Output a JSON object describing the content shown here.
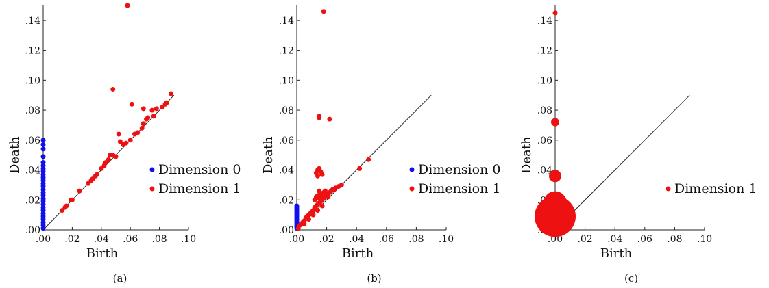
{
  "colors": {
    "dim0": "#1010ee",
    "dim1": "#ee1111",
    "axis": "#222222",
    "diagonal": "#222222"
  },
  "chart_data": [
    {
      "type": "scatter",
      "panel_label": "(a)",
      "xlabel": "Birth",
      "ylabel": "Death",
      "xlim": [
        0,
        0.1
      ],
      "ylim": [
        0,
        0.15
      ],
      "xticks": [
        ".00",
        ".02",
        ".04",
        ".06",
        ".08",
        ".10"
      ],
      "yticks": [
        ".00",
        ".02",
        ".04",
        ".06",
        ".08",
        ".10",
        ".12",
        ".14"
      ],
      "diagonal": [
        0,
        0.09
      ],
      "legend_position": "right",
      "series": [
        {
          "name": "Dimension 0",
          "color_key": "dim0",
          "points": [
            [
              0,
              0.001
            ],
            [
              0,
              0.003
            ],
            [
              0,
              0.005
            ],
            [
              0,
              0.007
            ],
            [
              0,
              0.009
            ],
            [
              0,
              0.011
            ],
            [
              0,
              0.013
            ],
            [
              0,
              0.015
            ],
            [
              0,
              0.017
            ],
            [
              0,
              0.019
            ],
            [
              0,
              0.021
            ],
            [
              0,
              0.023
            ],
            [
              0,
              0.025
            ],
            [
              0,
              0.027
            ],
            [
              0,
              0.029
            ],
            [
              0,
              0.031
            ],
            [
              0,
              0.033
            ],
            [
              0,
              0.035
            ],
            [
              0,
              0.037
            ],
            [
              0,
              0.039
            ],
            [
              0,
              0.041
            ],
            [
              0,
              0.043
            ],
            [
              0,
              0.045
            ],
            [
              0,
              0.049
            ],
            [
              0,
              0.054
            ],
            [
              0,
              0.057
            ],
            [
              0,
              0.06
            ]
          ]
        },
        {
          "name": "Dimension 1",
          "color_key": "dim1",
          "points": [
            [
              0.013,
              0.013
            ],
            [
              0.015,
              0.015
            ],
            [
              0.016,
              0.016
            ],
            [
              0.019,
              0.02
            ],
            [
              0.02,
              0.02
            ],
            [
              0.025,
              0.026
            ],
            [
              0.031,
              0.031
            ],
            [
              0.033,
              0.033
            ],
            [
              0.034,
              0.034
            ],
            [
              0.036,
              0.036
            ],
            [
              0.037,
              0.037
            ],
            [
              0.04,
              0.041
            ],
            [
              0.042,
              0.043
            ],
            [
              0.043,
              0.045
            ],
            [
              0.045,
              0.047
            ],
            [
              0.046,
              0.05
            ],
            [
              0.048,
              0.05
            ],
            [
              0.05,
              0.049
            ],
            [
              0.052,
              0.064
            ],
            [
              0.053,
              0.059
            ],
            [
              0.055,
              0.057
            ],
            [
              0.057,
              0.058
            ],
            [
              0.06,
              0.06
            ],
            [
              0.063,
              0.064
            ],
            [
              0.065,
              0.065
            ],
            [
              0.068,
              0.068
            ],
            [
              0.069,
              0.071
            ],
            [
              0.071,
              0.074
            ],
            [
              0.072,
              0.075
            ],
            [
              0.075,
              0.08
            ],
            [
              0.076,
              0.076
            ],
            [
              0.078,
              0.081
            ],
            [
              0.082,
              0.082
            ],
            [
              0.084,
              0.084
            ],
            [
              0.085,
              0.085
            ],
            [
              0.048,
              0.094
            ],
            [
              0.061,
              0.084
            ],
            [
              0.069,
              0.081
            ],
            [
              0.088,
              0.091
            ],
            [
              0.058,
              0.15
            ]
          ]
        }
      ]
    },
    {
      "type": "scatter",
      "panel_label": "(b)",
      "xlabel": "Birth",
      "ylabel": "Death",
      "xlim": [
        0,
        0.1
      ],
      "ylim": [
        0,
        0.15
      ],
      "xticks": [
        ".00",
        ".02",
        ".04",
        ".06",
        ".08",
        ".10"
      ],
      "yticks": [
        ".00",
        ".02",
        ".04",
        ".06",
        ".08",
        ".10",
        ".12",
        ".14"
      ],
      "diagonal": [
        0,
        0.09
      ],
      "legend_position": "right",
      "series": [
        {
          "name": "Dimension 0",
          "color_key": "dim0",
          "points": [
            [
              0,
              0.001
            ],
            [
              0,
              0.002
            ],
            [
              0,
              0.003
            ],
            [
              0,
              0.004
            ],
            [
              0,
              0.005
            ],
            [
              0,
              0.006
            ],
            [
              0,
              0.007
            ],
            [
              0,
              0.008
            ],
            [
              0,
              0.009
            ],
            [
              0,
              0.01
            ],
            [
              0,
              0.011
            ],
            [
              0,
              0.012
            ],
            [
              0,
              0.013
            ],
            [
              0,
              0.014
            ],
            [
              0,
              0.015
            ],
            [
              0,
              0.016
            ]
          ]
        },
        {
          "name": "Dimension 1",
          "color_key": "dim1",
          "points": [
            [
              0.001,
              0.001
            ],
            [
              0.002,
              0.003
            ],
            [
              0.003,
              0.004
            ],
            [
              0.004,
              0.005
            ],
            [
              0.005,
              0.006
            ],
            [
              0.006,
              0.008
            ],
            [
              0.007,
              0.009
            ],
            [
              0.008,
              0.01
            ],
            [
              0.009,
              0.011
            ],
            [
              0.01,
              0.012
            ],
            [
              0.011,
              0.013
            ],
            [
              0.012,
              0.015
            ],
            [
              0.013,
              0.016
            ],
            [
              0.014,
              0.017
            ],
            [
              0.015,
              0.018
            ],
            [
              0.016,
              0.019
            ],
            [
              0.017,
              0.02
            ],
            [
              0.018,
              0.021
            ],
            [
              0.019,
              0.022
            ],
            [
              0.02,
              0.023
            ],
            [
              0.021,
              0.024
            ],
            [
              0.022,
              0.025
            ],
            [
              0.023,
              0.026
            ],
            [
              0.024,
              0.027
            ],
            [
              0.025,
              0.027
            ],
            [
              0.026,
              0.028
            ],
            [
              0.028,
              0.029
            ],
            [
              0.03,
              0.03
            ],
            [
              0.005,
              0.004
            ],
            [
              0.008,
              0.007
            ],
            [
              0.011,
              0.01
            ],
            [
              0.014,
              0.013
            ],
            [
              0.017,
              0.016
            ],
            [
              0.012,
              0.02
            ],
            [
              0.013,
              0.022
            ],
            [
              0.014,
              0.023
            ],
            [
              0.015,
              0.021
            ],
            [
              0.016,
              0.024
            ],
            [
              0.017,
              0.022
            ],
            [
              0.018,
              0.025
            ],
            [
              0.019,
              0.026
            ],
            [
              0.02,
              0.024
            ],
            [
              0.021,
              0.022
            ],
            [
              0.015,
              0.026
            ],
            [
              0.013,
              0.038
            ],
            [
              0.014,
              0.04
            ],
            [
              0.015,
              0.041
            ],
            [
              0.016,
              0.039
            ],
            [
              0.017,
              0.037
            ],
            [
              0.014,
              0.036
            ],
            [
              0.015,
              0.075
            ],
            [
              0.015,
              0.076
            ],
            [
              0.022,
              0.074
            ],
            [
              0.018,
              0.146
            ],
            [
              0.042,
              0.041
            ],
            [
              0.048,
              0.047
            ]
          ]
        }
      ]
    },
    {
      "type": "scatter",
      "panel_label": "(c)",
      "xlabel": "Birth",
      "ylabel": "Death",
      "xlim": [
        0,
        0.1
      ],
      "ylim": [
        0,
        0.15
      ],
      "xticks": [
        ".00",
        ".02",
        ".04",
        ".06",
        ".08",
        ".10"
      ],
      "yticks": [
        ".00",
        ".02",
        ".04",
        ".06",
        ".08",
        ".10",
        ".12",
        ".14"
      ],
      "diagonal": [
        0,
        0.09
      ],
      "legend_position": "right",
      "marker_size_varies": true,
      "series": [
        {
          "name": "Dimension 1",
          "color_key": "dim1",
          "points": [
            [
              0,
              0.145,
              1
            ],
            [
              0,
              0.072,
              2
            ],
            [
              0,
              0.036,
              3
            ],
            [
              0,
              0.018,
              5
            ],
            [
              0,
              0.009,
              7
            ]
          ]
        }
      ]
    }
  ]
}
